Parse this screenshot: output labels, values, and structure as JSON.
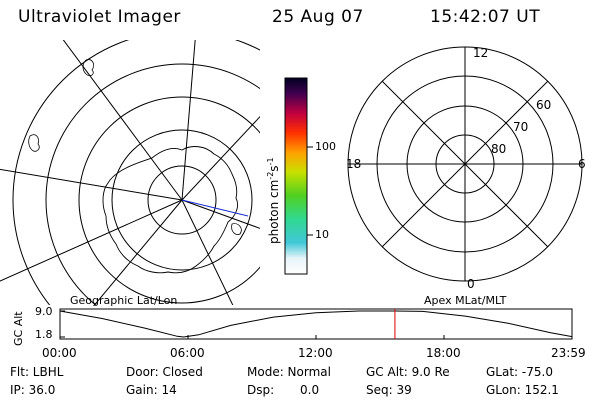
{
  "header": {
    "title": "Ultraviolet Imager",
    "date": "25 Aug 07",
    "time": "15:42:07 UT"
  },
  "colorbar": {
    "label": "photon cm",
    "label_exp1": "-2",
    "label_mid": "s",
    "label_exp2": "-1",
    "tick_labels": [
      "100",
      "10"
    ]
  },
  "polar_plot": {
    "mlt_labels": {
      "top": "12",
      "left": "18",
      "right": "6",
      "bottom": "0"
    },
    "lat_labels": [
      "60",
      "70",
      "80"
    ]
  },
  "map_labels": {
    "left": "Geographic Lat/Lon",
    "right": "Apex MLat/MLT"
  },
  "altitude_plot": {
    "ylabel": "GC Alt",
    "ytick_top": "9.0",
    "ytick_bottom": "1.8",
    "x_ticks": [
      "00:00",
      "06:00",
      "12:00",
      "18:00",
      "23:59"
    ]
  },
  "chart_data": {
    "type": "line",
    "title": "",
    "ylabel": "GC Alt",
    "xlabel": "",
    "x_unit": "hours UT",
    "ylim": [
      1.8,
      9.0
    ],
    "xlim": [
      0,
      24
    ],
    "series": [
      {
        "values": [
          {
            "x": 0,
            "y": 9.0
          },
          {
            "x": 2,
            "y": 6.9
          },
          {
            "x": 4,
            "y": 4.2
          },
          {
            "x": 5.5,
            "y": 2.0
          },
          {
            "x": 5.8,
            "y": 1.8
          },
          {
            "x": 6.5,
            "y": 2.4
          },
          {
            "x": 8,
            "y": 5.0
          },
          {
            "x": 10,
            "y": 7.3
          },
          {
            "x": 12,
            "y": 8.5
          },
          {
            "x": 14,
            "y": 9.0
          },
          {
            "x": 15.7,
            "y": 9.0
          },
          {
            "x": 17,
            "y": 8.9
          },
          {
            "x": 19,
            "y": 7.6
          },
          {
            "x": 21,
            "y": 5.6
          },
          {
            "x": 23,
            "y": 3.0
          },
          {
            "x": 24,
            "y": 1.9
          }
        ]
      }
    ],
    "marker": {
      "x": 15.7,
      "color": "#e00000"
    }
  },
  "status": {
    "filter": "Flt: LBHL",
    "ip": "IP: 36.0",
    "door": "Door: Closed",
    "gain": "Gain: 14",
    "mode": "Mode: Normal",
    "dsp_label": "Dsp:",
    "dsp_value": "0.0",
    "gc_alt": "GC Alt: 9.0 Re",
    "seq": "Seq: 39",
    "glat": "GLat: -75.0",
    "glon": "GLon: 152.1"
  },
  "colors": {
    "marker": "#e00000",
    "line": "#000000",
    "background": "#ffffff"
  }
}
